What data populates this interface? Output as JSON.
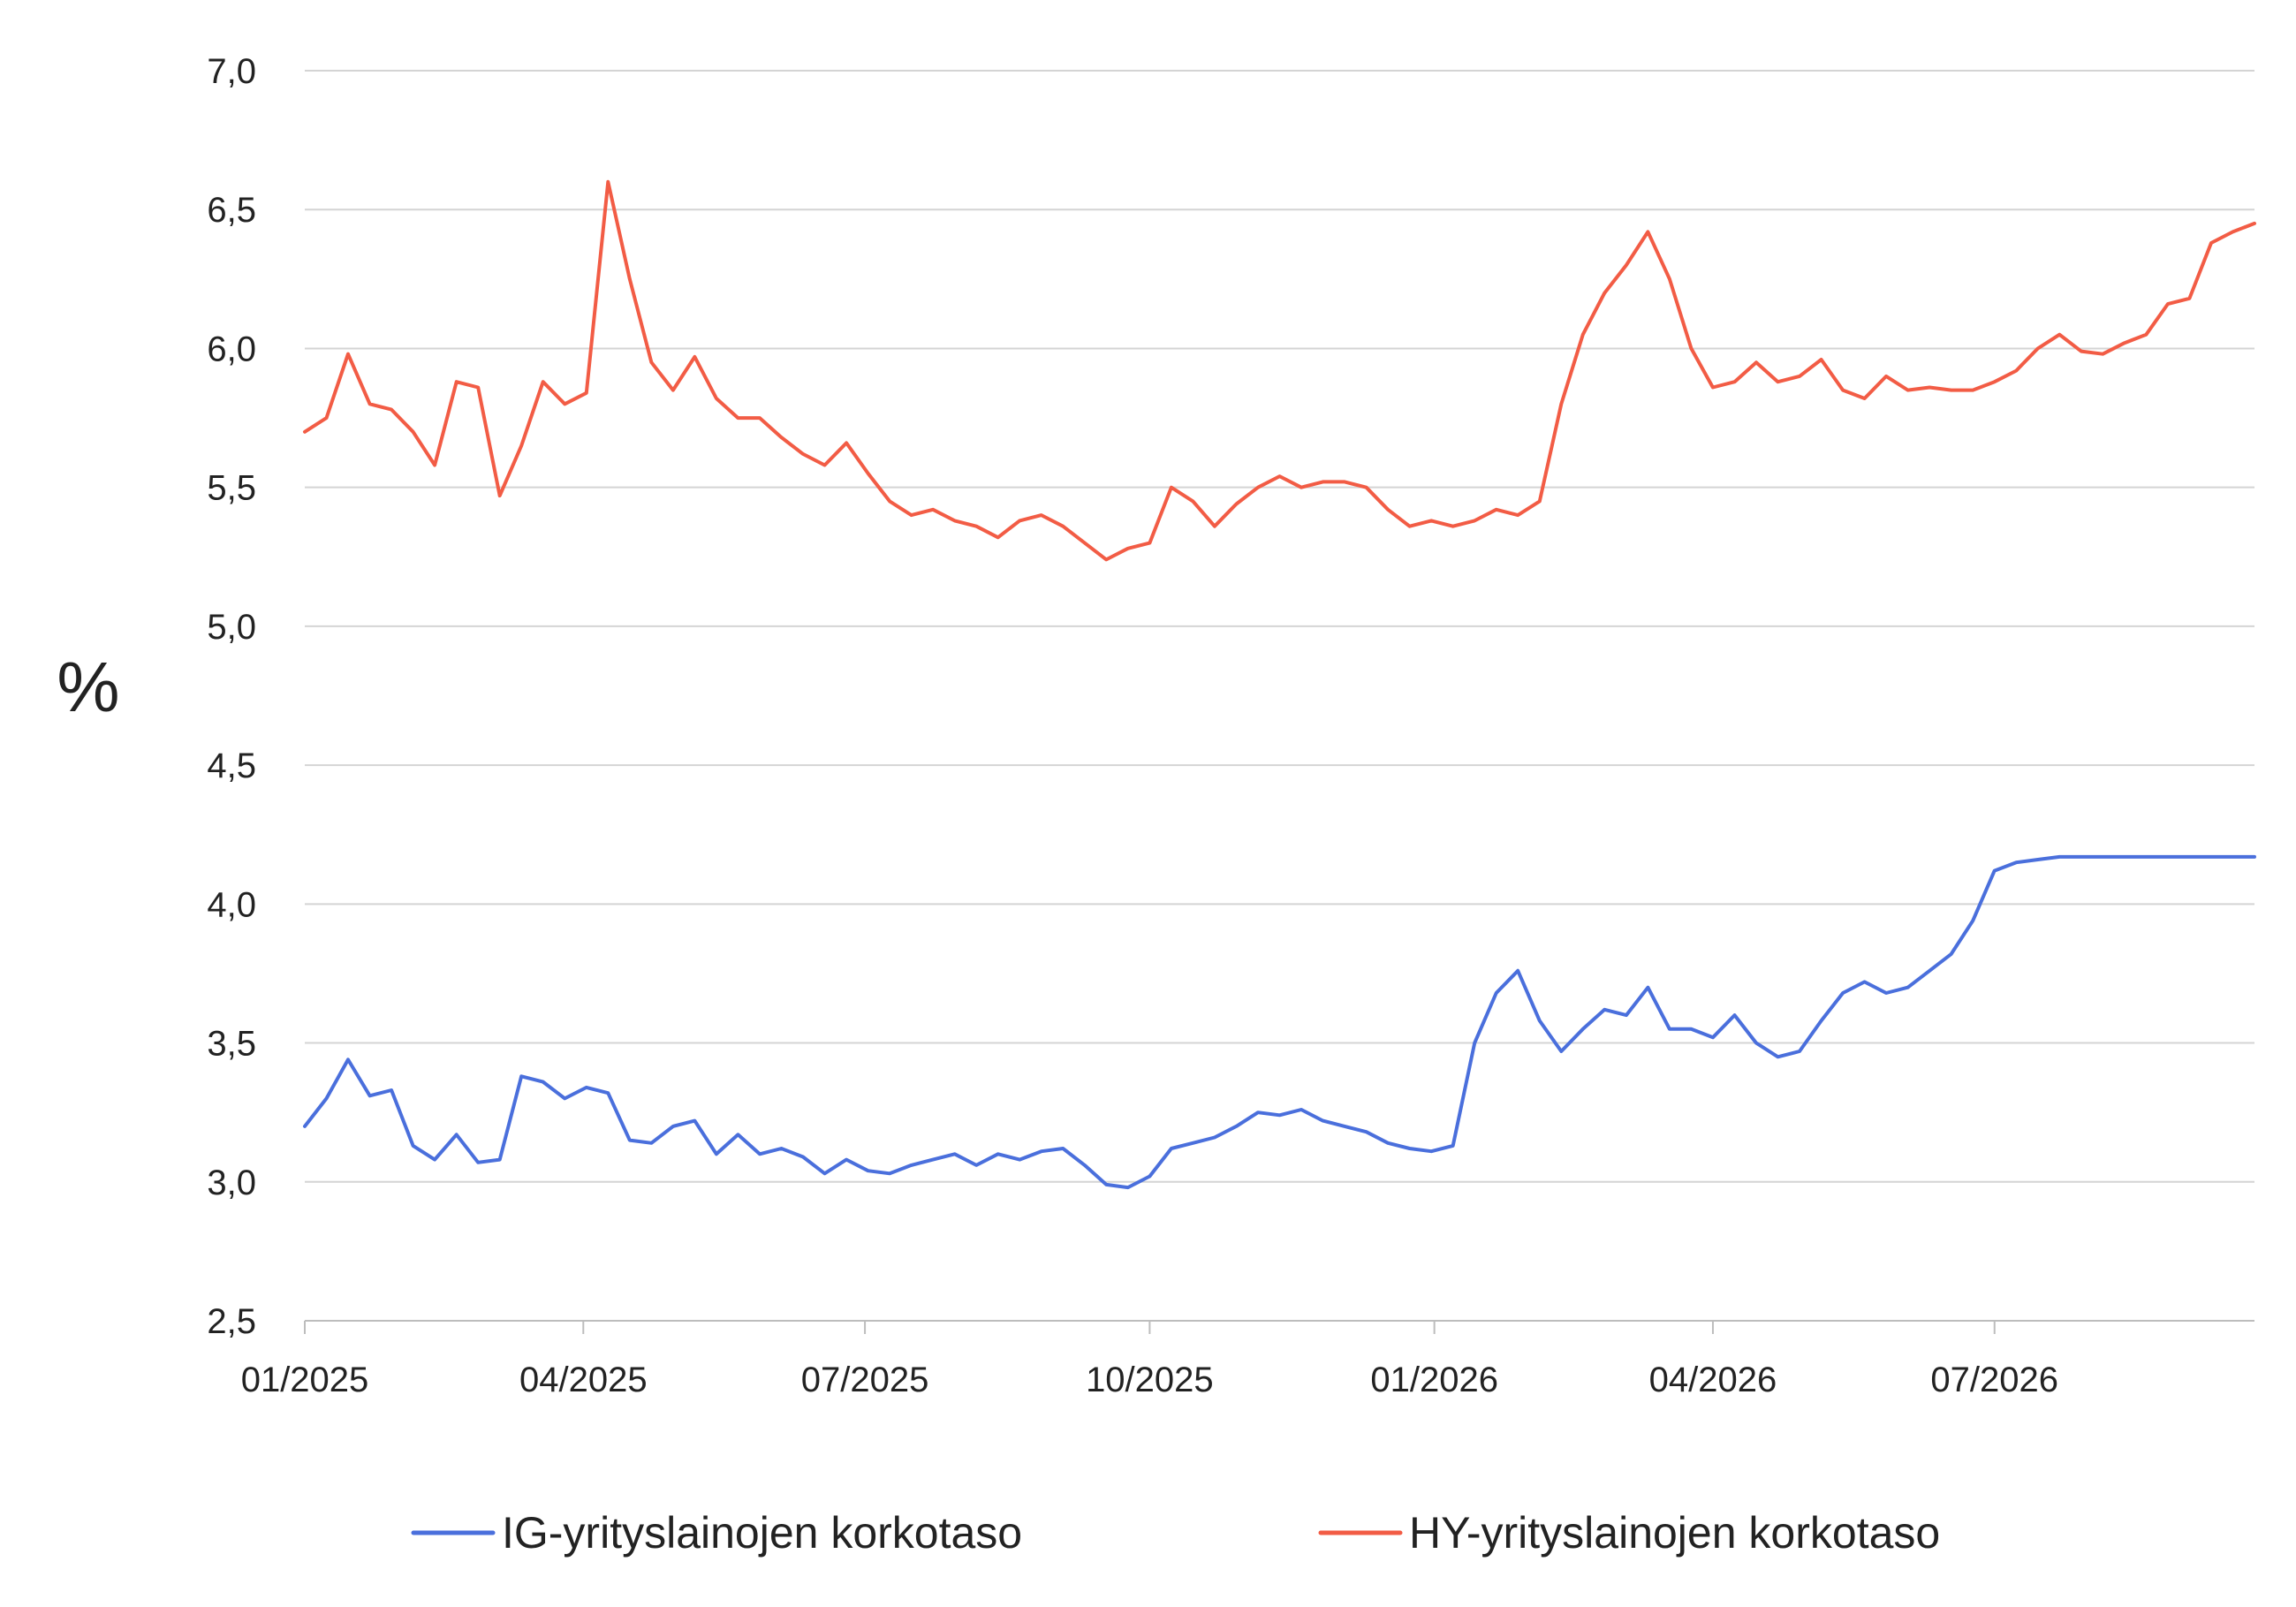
{
  "chart_data": {
    "type": "line",
    "title": "",
    "xlabel": "",
    "ylabel": "%",
    "ylim": [
      2.5,
      7.0
    ],
    "grid": true,
    "legend_position": "bottom",
    "y_ticks": [
      "2,5",
      "3,0",
      "3,5",
      "4,0",
      "4,5",
      "5,0",
      "5,5",
      "6,0",
      "6,5",
      "7,0"
    ],
    "x_ticks": [
      "01/2025",
      "04/2025",
      "07/2025",
      "10/2025",
      "01/2026",
      "04/2026",
      "07/2026"
    ],
    "series": [
      {
        "name": "IG-yrityslainojen korkotaso",
        "color": "#4a6fdc",
        "x": [
          "2025-01-01",
          "2025-01-08",
          "2025-01-15",
          "2025-01-22",
          "2025-01-29",
          "2025-02-05",
          "2025-02-12",
          "2025-02-19",
          "2025-02-26",
          "2025-03-05",
          "2025-03-12",
          "2025-03-19",
          "2025-03-26",
          "2025-04-02",
          "2025-04-09",
          "2025-04-16",
          "2025-04-23",
          "2025-04-30",
          "2025-05-07",
          "2025-05-14",
          "2025-05-21",
          "2025-05-28",
          "2025-06-04",
          "2025-06-11",
          "2025-06-18",
          "2025-06-25",
          "2025-07-02",
          "2025-07-09",
          "2025-07-16",
          "2025-07-23",
          "2025-07-30",
          "2025-08-06",
          "2025-08-13",
          "2025-08-20",
          "2025-08-27",
          "2025-09-03",
          "2025-09-10",
          "2025-09-17",
          "2025-09-24",
          "2025-10-01",
          "2025-10-08",
          "2025-10-15",
          "2025-10-22",
          "2025-10-29",
          "2025-11-05",
          "2025-11-12",
          "2025-11-19",
          "2025-11-26",
          "2025-12-03",
          "2025-12-10",
          "2025-12-17",
          "2025-12-24",
          "2025-12-31",
          "2026-01-07",
          "2026-01-14",
          "2026-01-21",
          "2026-01-28",
          "2026-02-04",
          "2026-02-11",
          "2026-02-18",
          "2026-02-25",
          "2026-03-04",
          "2026-03-11",
          "2026-03-18",
          "2026-03-25",
          "2026-04-01",
          "2026-04-08",
          "2026-04-15",
          "2026-04-22",
          "2026-04-29",
          "2026-05-06",
          "2026-05-13",
          "2026-05-20",
          "2026-05-27",
          "2026-06-03",
          "2026-06-10",
          "2026-06-17",
          "2026-06-24",
          "2026-07-01",
          "2026-07-08",
          "2026-07-15",
          "2026-07-22",
          "2026-07-29",
          "2026-08-05",
          "2026-08-12",
          "2026-08-19",
          "2026-08-26",
          "2026-09-02",
          "2026-09-09",
          "2026-09-16",
          "2026-09-23"
        ],
        "values": [
          3.2,
          3.3,
          3.44,
          3.31,
          3.33,
          3.13,
          3.08,
          3.17,
          3.07,
          3.08,
          3.38,
          3.36,
          3.3,
          3.34,
          3.32,
          3.15,
          3.14,
          3.2,
          3.22,
          3.1,
          3.17,
          3.1,
          3.12,
          3.09,
          3.03,
          3.08,
          3.04,
          3.03,
          3.06,
          3.08,
          3.1,
          3.06,
          3.1,
          3.08,
          3.11,
          3.12,
          3.06,
          2.99,
          2.98,
          3.02,
          3.12,
          3.14,
          3.16,
          3.2,
          3.25,
          3.24,
          3.26,
          3.22,
          3.2,
          3.18,
          3.14,
          3.12,
          3.11,
          3.13,
          3.5,
          3.68,
          3.76,
          3.58,
          3.47,
          3.55,
          3.62,
          3.6,
          3.7,
          3.55,
          3.55,
          3.52,
          3.6,
          3.5,
          3.45,
          3.47,
          3.58,
          3.68,
          3.72,
          3.68,
          3.7,
          3.76,
          3.82,
          3.94,
          4.12,
          4.15,
          4.16,
          4.17,
          4.17,
          4.17,
          4.17,
          4.17,
          4.17,
          4.17,
          4.17,
          4.17,
          4.17
        ]
      },
      {
        "name": "HY-yrityslainojen korkotaso",
        "color": "#f25c45",
        "x": [
          "2025-01-01",
          "2025-01-08",
          "2025-01-15",
          "2025-01-22",
          "2025-01-29",
          "2025-02-05",
          "2025-02-12",
          "2025-02-19",
          "2025-02-26",
          "2025-03-05",
          "2025-03-12",
          "2025-03-19",
          "2025-03-26",
          "2025-04-02",
          "2025-04-09",
          "2025-04-16",
          "2025-04-23",
          "2025-04-30",
          "2025-05-07",
          "2025-05-14",
          "2025-05-21",
          "2025-05-28",
          "2025-06-04",
          "2025-06-11",
          "2025-06-18",
          "2025-06-25",
          "2025-07-02",
          "2025-07-09",
          "2025-07-16",
          "2025-07-23",
          "2025-07-30",
          "2025-08-06",
          "2025-08-13",
          "2025-08-20",
          "2025-08-27",
          "2025-09-03",
          "2025-09-10",
          "2025-09-17",
          "2025-09-24",
          "2025-10-01",
          "2025-10-08",
          "2025-10-15",
          "2025-10-22",
          "2025-10-29",
          "2025-11-05",
          "2025-11-12",
          "2025-11-19",
          "2025-11-26",
          "2025-12-03",
          "2025-12-10",
          "2025-12-17",
          "2025-12-24",
          "2025-12-31",
          "2026-01-07",
          "2026-01-14",
          "2026-01-21",
          "2026-01-28",
          "2026-02-04",
          "2026-02-11",
          "2026-02-18",
          "2026-02-25",
          "2026-03-04",
          "2026-03-11",
          "2026-03-18",
          "2026-03-25",
          "2026-04-01",
          "2026-04-08",
          "2026-04-15",
          "2026-04-22",
          "2026-04-29",
          "2026-05-06",
          "2026-05-13",
          "2026-05-20",
          "2026-05-27",
          "2026-06-03",
          "2026-06-10",
          "2026-06-17",
          "2026-06-24",
          "2026-07-01",
          "2026-07-08",
          "2026-07-15",
          "2026-07-22",
          "2026-07-29",
          "2026-08-05",
          "2026-08-12",
          "2026-08-19",
          "2026-08-26",
          "2026-09-02",
          "2026-09-09",
          "2026-09-16",
          "2026-09-23"
        ],
        "values": [
          5.7,
          5.75,
          5.98,
          5.8,
          5.78,
          5.7,
          5.58,
          5.88,
          5.86,
          5.47,
          5.65,
          5.88,
          5.8,
          5.84,
          6.6,
          6.25,
          5.95,
          5.85,
          5.97,
          5.82,
          5.75,
          5.75,
          5.68,
          5.62,
          5.58,
          5.66,
          5.55,
          5.45,
          5.4,
          5.42,
          5.38,
          5.36,
          5.32,
          5.38,
          5.4,
          5.36,
          5.3,
          5.24,
          5.28,
          5.3,
          5.5,
          5.45,
          5.36,
          5.44,
          5.5,
          5.54,
          5.5,
          5.52,
          5.52,
          5.5,
          5.42,
          5.36,
          5.38,
          5.36,
          5.38,
          5.42,
          5.4,
          5.45,
          5.8,
          6.05,
          6.2,
          6.3,
          6.42,
          6.25,
          6.0,
          5.86,
          5.88,
          5.95,
          5.88,
          5.9,
          5.96,
          5.85,
          5.82,
          5.9,
          5.85,
          5.86,
          5.85,
          5.85,
          5.88,
          5.92,
          6.0,
          6.05,
          5.99,
          5.98,
          6.02,
          6.05,
          6.16,
          6.18,
          6.38,
          6.42,
          6.45
        ]
      }
    ]
  }
}
